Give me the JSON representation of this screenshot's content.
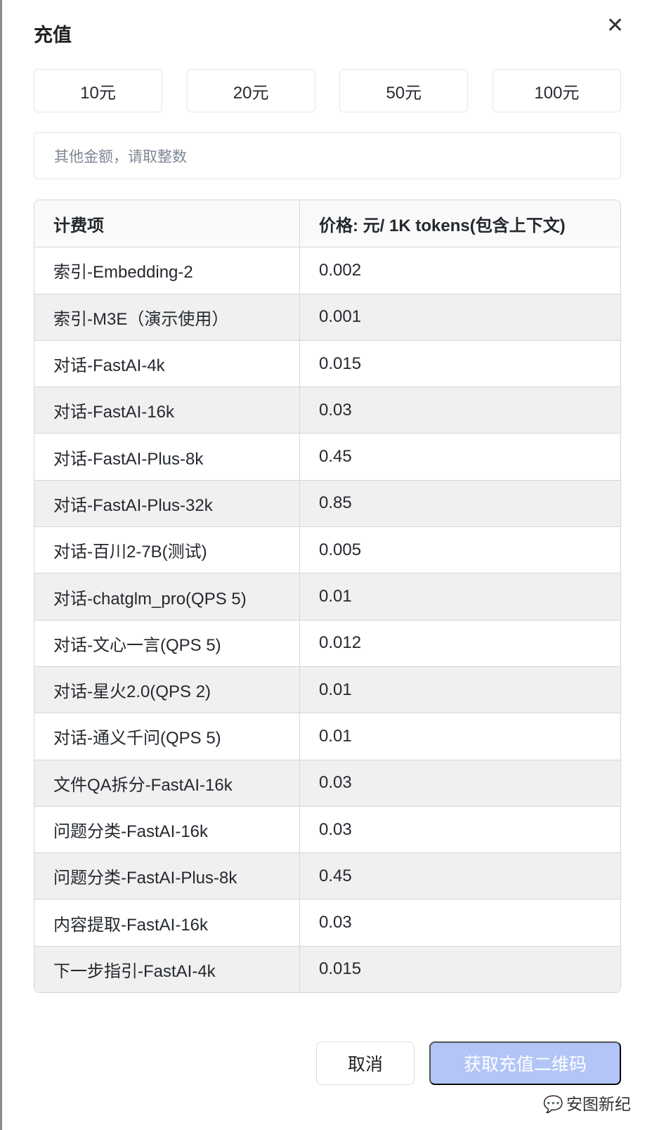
{
  "dialog": {
    "title": "充值",
    "close_icon": "close-icon"
  },
  "amounts": [
    "10元",
    "20元",
    "50元",
    "100元"
  ],
  "custom_amount": {
    "placeholder": "其他金额，请取整数",
    "value": ""
  },
  "table": {
    "headers": [
      "计费项",
      "价格: 元/ 1K tokens(包含上下文)"
    ],
    "rows": [
      [
        "索引-Embedding-2",
        "0.002"
      ],
      [
        "索引-M3E（演示使用）",
        "0.001"
      ],
      [
        "对话-FastAI-4k",
        "0.015"
      ],
      [
        "对话-FastAI-16k",
        "0.03"
      ],
      [
        "对话-FastAI-Plus-8k",
        "0.45"
      ],
      [
        "对话-FastAI-Plus-32k",
        "0.85"
      ],
      [
        "对话-百川2-7B(测试)",
        "0.005"
      ],
      [
        "对话-chatglm_pro(QPS 5)",
        "0.01"
      ],
      [
        "对话-文心一言(QPS 5)",
        "0.012"
      ],
      [
        "对话-星火2.0(QPS 2)",
        "0.01"
      ],
      [
        "对话-通义千问(QPS 5)",
        "0.01"
      ],
      [
        "文件QA拆分-FastAI-16k",
        "0.03"
      ],
      [
        "问题分类-FastAI-16k",
        "0.03"
      ],
      [
        "问题分类-FastAI-Plus-8k",
        "0.45"
      ],
      [
        "内容提取-FastAI-16k",
        "0.03"
      ],
      [
        "下一步指引-FastAI-4k",
        "0.015"
      ]
    ]
  },
  "footer": {
    "cancel": "取消",
    "submit": "获取充值二维码"
  },
  "watermark": "安图新纪",
  "colors": {
    "primary_disabled": "#b3c5f7",
    "alt_row": "#f0f0f0"
  }
}
